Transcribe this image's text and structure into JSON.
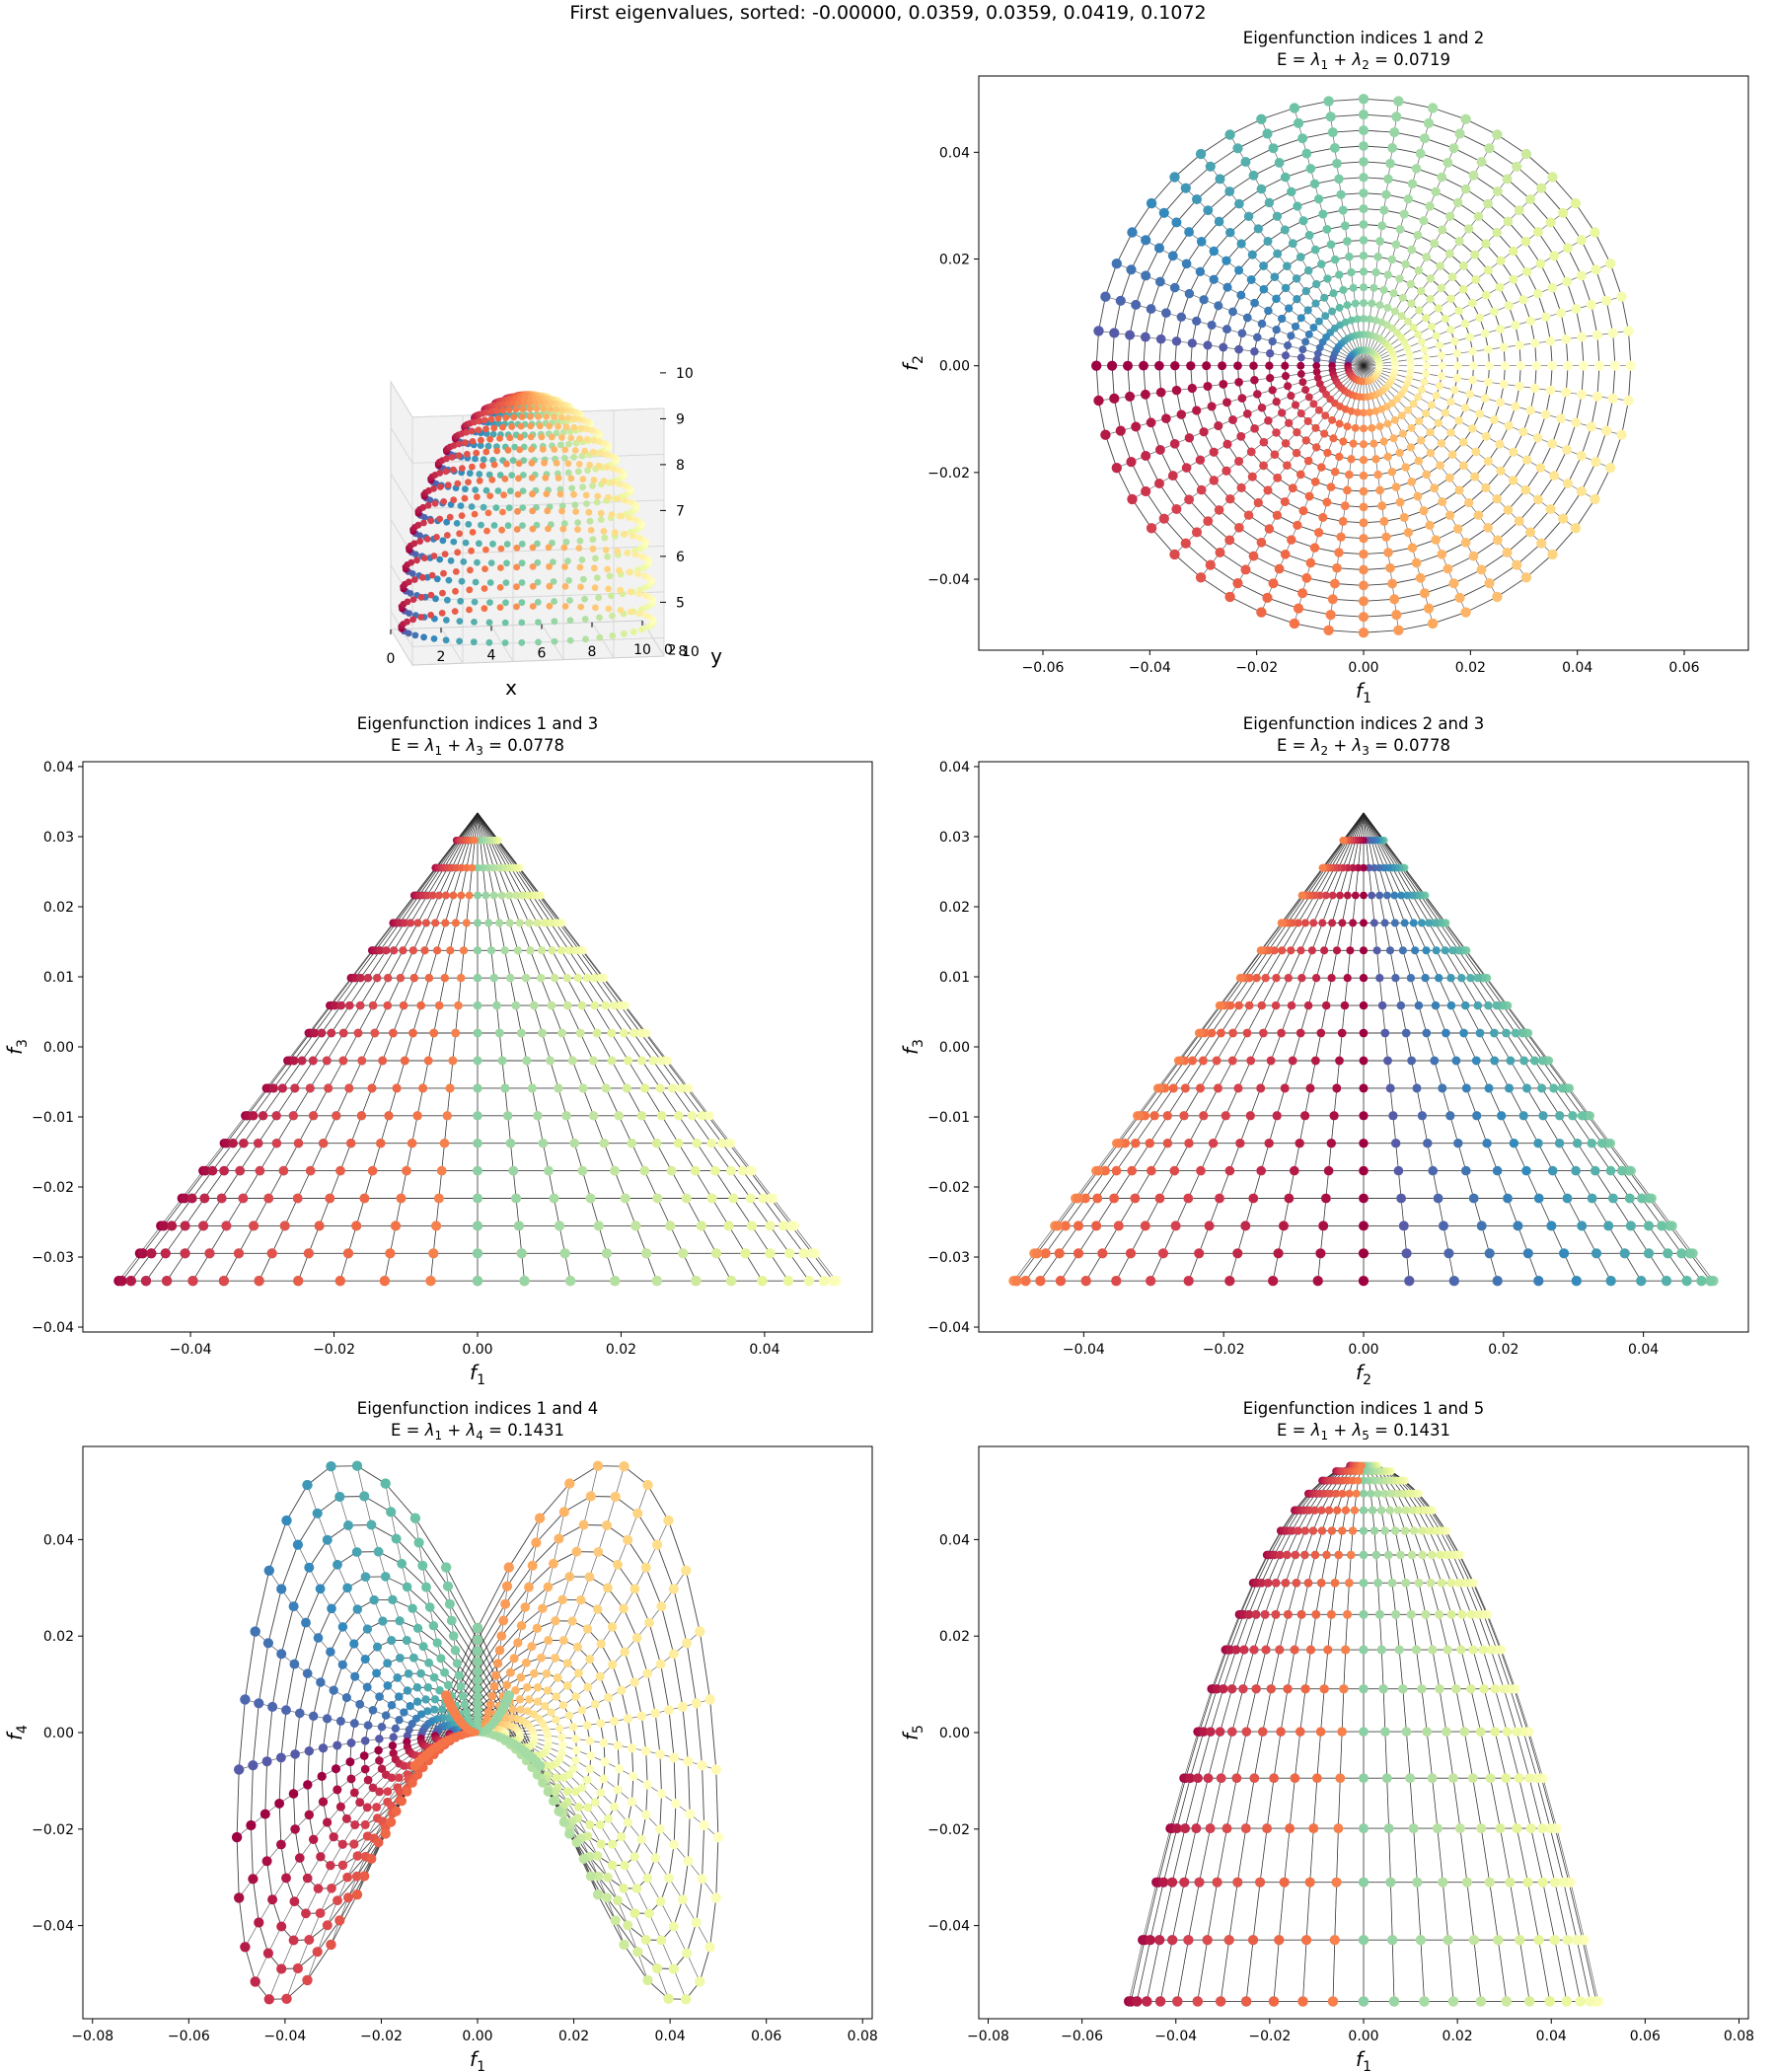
{
  "suptitle": "First eigenvalues, sorted: -0.00000, 0.0359, 0.0359, 0.0419, 0.1072",
  "colormap": [
    "#9e0142",
    "#d53e4f",
    "#f46d43",
    "#fdae61",
    "#fee08b",
    "#ffffbf",
    "#e6f598",
    "#abdda4",
    "#66c2a5",
    "#3288bd",
    "#5e4fa2"
  ],
  "chart_data": [
    {
      "type": "scatter",
      "subtype": "3d-surface-point-cloud",
      "title": "",
      "xlabel": "x",
      "ylabel": "y",
      "zlabel": "",
      "xticks": [
        "0",
        "2",
        "4",
        "6",
        "8",
        "10"
      ],
      "yticks": [
        "0",
        "2",
        "4",
        "6",
        "8",
        "10"
      ],
      "zticks": [
        "5",
        "6",
        "7",
        "8",
        "9",
        "10"
      ],
      "xlim": [
        0,
        10
      ],
      "ylim": [
        0,
        10
      ],
      "zlim": [
        4.6,
        10
      ],
      "description_values": {
        "shape": "hemisphere, radius 5, center (5,5,5)",
        "n_rings": 17,
        "n_meridians": 48
      }
    },
    {
      "type": "scatter",
      "title_line1": "Eigenfunction indices 1 and 2",
      "title_line2_prefix": "E = ",
      "title_lam_a": "1",
      "title_lam_b": "2",
      "title_value": "0.0719",
      "xlabel_sub": "1",
      "ylabel_sub": "2",
      "xlim": [
        -0.072,
        0.072
      ],
      "ylim": [
        -0.0533,
        0.0543
      ],
      "xticks": [
        -0.06,
        -0.04,
        -0.02,
        0.0,
        0.02,
        0.04,
        0.06
      ],
      "yticks": [
        -0.04,
        -0.02,
        0.0,
        0.02,
        0.04
      ],
      "x_tick_labels": [
        "−0.06",
        "−0.04",
        "−0.02",
        "0.00",
        "0.02",
        "0.04",
        "0.06"
      ],
      "y_tick_labels": [
        "−0.04",
        "−0.02",
        "0.00",
        "0.02",
        "0.04"
      ],
      "series": [
        {
          "x_formula": "0.05·u·cos(φ)",
          "y_formula": "0.05·u·sin(φ)",
          "x_range": [
            -0.05,
            0.05
          ],
          "y_range": [
            -0.05,
            0.05
          ]
        }
      ]
    },
    {
      "type": "scatter",
      "title_line1": "Eigenfunction indices 1 and 3",
      "title_line2_prefix": "E = ",
      "title_lam_a": "1",
      "title_lam_b": "3",
      "title_value": "0.0778",
      "xlabel_sub": "1",
      "ylabel_sub": "3",
      "xlim": [
        -0.055,
        0.055
      ],
      "ylim": [
        -0.0407,
        0.0407
      ],
      "xticks": [
        -0.04,
        -0.02,
        0.0,
        0.02,
        0.04
      ],
      "yticks": [
        -0.04,
        -0.03,
        -0.02,
        -0.01,
        0.0,
        0.01,
        0.02,
        0.03,
        0.04
      ],
      "x_tick_labels": [
        "−0.04",
        "−0.02",
        "0.00",
        "0.02",
        "0.04"
      ],
      "y_tick_labels": [
        "−0.04",
        "−0.03",
        "−0.02",
        "−0.01",
        "0.00",
        "0.01",
        "0.02",
        "0.03",
        "0.04"
      ],
      "series": [
        {
          "x_range": [
            -0.05,
            0.05
          ],
          "y_range": [
            -0.0334,
            0.0334
          ]
        }
      ]
    },
    {
      "type": "scatter",
      "title_line1": "Eigenfunction indices 2 and 3",
      "title_line2_prefix": "E = ",
      "title_lam_a": "2",
      "title_lam_b": "3",
      "title_value": "0.0778",
      "xlabel_sub": "2",
      "ylabel_sub": "3",
      "xlim": [
        -0.055,
        0.055
      ],
      "ylim": [
        -0.0407,
        0.0407
      ],
      "xticks": [
        -0.04,
        -0.02,
        0.0,
        0.02,
        0.04
      ],
      "yticks": [
        -0.04,
        -0.03,
        -0.02,
        -0.01,
        0.0,
        0.01,
        0.02,
        0.03,
        0.04
      ],
      "x_tick_labels": [
        "−0.04",
        "−0.02",
        "0.00",
        "0.02",
        "0.04"
      ],
      "y_tick_labels": [
        "−0.04",
        "−0.03",
        "−0.02",
        "−0.01",
        "0.00",
        "0.01",
        "0.02",
        "0.03",
        "0.04"
      ],
      "series": [
        {
          "x_range": [
            -0.05,
            0.05
          ],
          "y_range": [
            -0.0334,
            0.0334
          ]
        }
      ]
    },
    {
      "type": "scatter",
      "title_line1": "Eigenfunction indices 1 and 4",
      "title_line2_prefix": "E = ",
      "title_lam_a": "1",
      "title_lam_b": "4",
      "title_value": "0.1431",
      "xlabel_sub": "1",
      "ylabel_sub": "4",
      "xlim": [
        -0.082,
        0.082
      ],
      "ylim": [
        -0.0593,
        0.0593
      ],
      "xticks": [
        -0.08,
        -0.06,
        -0.04,
        -0.02,
        0.0,
        0.02,
        0.04,
        0.06,
        0.08
      ],
      "yticks": [
        -0.04,
        -0.02,
        0.0,
        0.02,
        0.04
      ],
      "x_tick_labels": [
        "−0.08",
        "−0.06",
        "−0.04",
        "−0.02",
        "0.00",
        "0.02",
        "0.04",
        "0.06",
        "0.08"
      ],
      "y_tick_labels": [
        "−0.04",
        "−0.02",
        "0.00",
        "0.02",
        "0.04"
      ],
      "series": [
        {
          "x_range": [
            -0.05,
            0.05
          ],
          "y_range": [
            -0.0557,
            0.0557
          ]
        }
      ]
    },
    {
      "type": "scatter",
      "title_line1": "Eigenfunction indices 1 and 5",
      "title_line2_prefix": "E = ",
      "title_lam_a": "1",
      "title_lam_b": "5",
      "title_value": "0.1431",
      "xlabel_sub": "1",
      "ylabel_sub": "5",
      "xlim": [
        -0.082,
        0.082
      ],
      "ylim": [
        -0.0593,
        0.0593
      ],
      "xticks": [
        -0.08,
        -0.06,
        -0.04,
        -0.02,
        0.0,
        0.02,
        0.04,
        0.06,
        0.08
      ],
      "yticks": [
        -0.04,
        -0.02,
        0.0,
        0.02,
        0.04
      ],
      "x_tick_labels": [
        "−0.08",
        "−0.06",
        "−0.04",
        "−0.02",
        "0.00",
        "0.02",
        "0.04",
        "0.06",
        "0.08"
      ],
      "y_tick_labels": [
        "−0.04",
        "−0.02",
        "0.00",
        "0.02",
        "0.04"
      ],
      "series": [
        {
          "x_range": [
            -0.05,
            0.05
          ],
          "y_range": [
            -0.0557,
            0.0557
          ]
        }
      ]
    }
  ]
}
